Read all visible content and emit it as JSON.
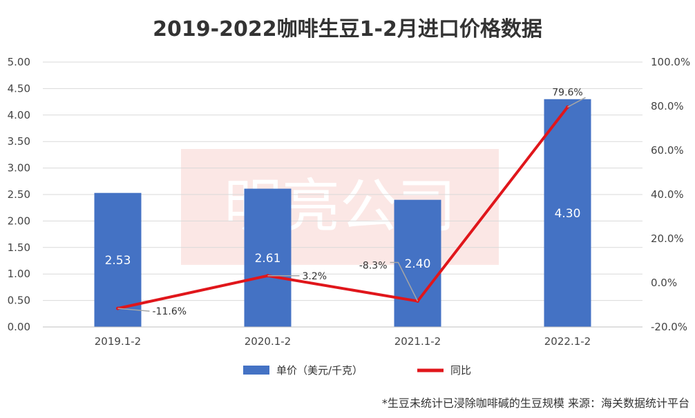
{
  "chart_data": {
    "type": "bar",
    "title": "2019-2022咖啡生豆1-2月进口价格数据",
    "categories": [
      "2019.1-2",
      "2020.1-2",
      "2021.1-2",
      "2022.1-2"
    ],
    "series": [
      {
        "name": "单价（美元/千克）",
        "type": "bar",
        "axis": "left",
        "color": "#4472C4",
        "values": [
          2.53,
          2.61,
          2.4,
          4.3
        ],
        "labels": [
          "2.53",
          "2.61",
          "2.40",
          "4.30"
        ]
      },
      {
        "name": "同比",
        "type": "line",
        "axis": "right",
        "color": "#E0161B",
        "values": [
          -11.6,
          3.2,
          -8.3,
          79.6
        ],
        "labels": [
          "-11.6%",
          "3.2%",
          "-8.3%",
          "79.6%"
        ]
      }
    ],
    "y_left": {
      "ylim": [
        0,
        5
      ],
      "ticks": [
        "0.00",
        "0.50",
        "1.00",
        "1.50",
        "2.00",
        "2.50",
        "3.00",
        "3.50",
        "4.00",
        "4.50",
        "5.00"
      ]
    },
    "y_right": {
      "ylim": [
        -20,
        100
      ],
      "ticks": [
        "-20.0%",
        "0.0%",
        "20.0%",
        "40.0%",
        "60.0%",
        "80.0%",
        "100.0%"
      ]
    },
    "grid": true,
    "legend": "bottom",
    "watermark": "明亮公司",
    "footnote": "*生豆未统计已浸除咖啡碱的生豆规模  来源：海关数据统计平台"
  }
}
